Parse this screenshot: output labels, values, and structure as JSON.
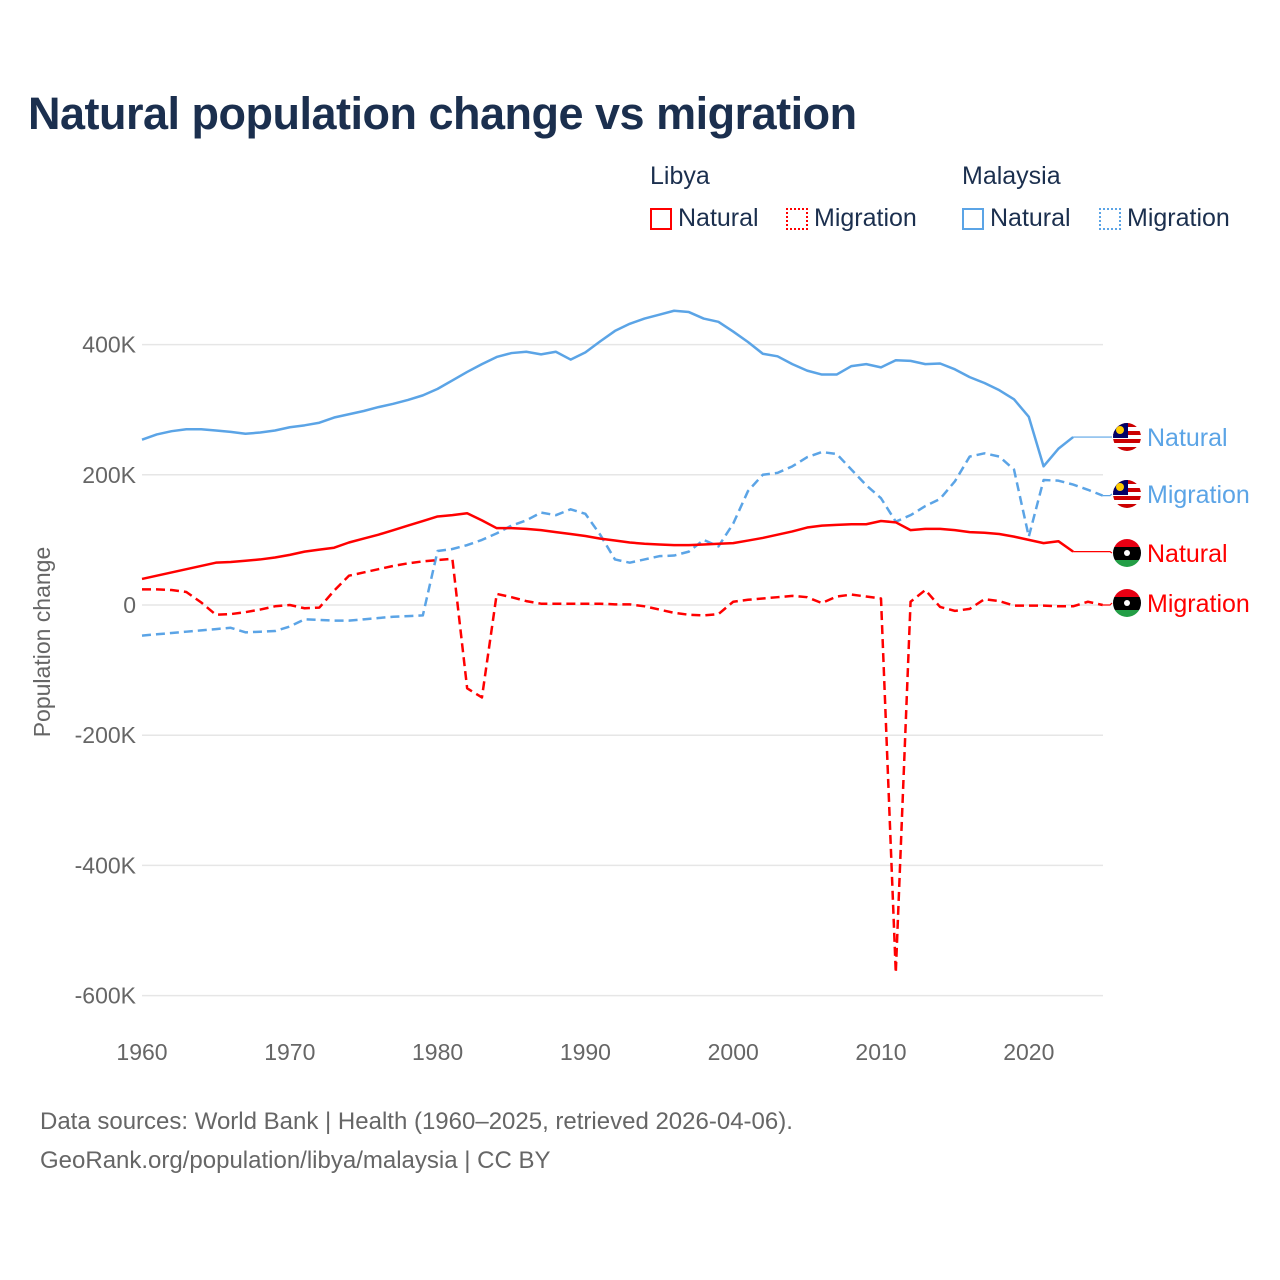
{
  "title": "Natural population change vs migration",
  "legend": {
    "groups": [
      {
        "country": "Libya",
        "items": [
          {
            "label": "Natural",
            "style": "solid",
            "color": "#ff0000"
          },
          {
            "label": "Migration",
            "style": "dotted",
            "color": "#ff0000"
          }
        ]
      },
      {
        "country": "Malaysia",
        "items": [
          {
            "label": "Natural",
            "style": "solid",
            "color": "#5ba4e6"
          },
          {
            "label": "Migration",
            "style": "dotted",
            "color": "#5ba4e6"
          }
        ]
      }
    ]
  },
  "footer": {
    "line1": "Data sources: World Bank | Health (1960–2025, retrieved 2026-04-06).",
    "line2": "GeoRank.org/population/libya/malaysia | CC BY"
  },
  "chart_data": {
    "type": "line",
    "title": "Natural population change vs migration",
    "xlabel": "",
    "ylabel": "Population change",
    "xlim": [
      1960,
      2025
    ],
    "ylim": [
      -600000,
      500000
    ],
    "xticks": [
      1960,
      1970,
      1980,
      1990,
      2000,
      2010,
      2020
    ],
    "xtick_labels": [
      "1960",
      "1970",
      "1980",
      "1990",
      "2000",
      "2010",
      "2020"
    ],
    "yticks": [
      400000,
      200000,
      0,
      -200000,
      -400000,
      -600000
    ],
    "ytick_labels": [
      "400K",
      "200K",
      "0",
      "-200K",
      "-400K",
      "-600K"
    ],
    "grid": true,
    "x_start": 1960,
    "series": [
      {
        "name": "Malaysia Natural",
        "country": "Malaysia",
        "label": "Natural",
        "color": "#5ba4e6",
        "dash": false,
        "flag": "malaysia-flag",
        "values": [
          254,
          262,
          267,
          270,
          270,
          268,
          266,
          263,
          265,
          268,
          273,
          276,
          280,
          288,
          293,
          298,
          304,
          309,
          315,
          322,
          332,
          345,
          358,
          370,
          381,
          387,
          389,
          385,
          389,
          377,
          388,
          405,
          421,
          432,
          440,
          446,
          452,
          450,
          440,
          435,
          420,
          404,
          386,
          382,
          370,
          360,
          354,
          354,
          367,
          370,
          365,
          376,
          375,
          370,
          371,
          362,
          350,
          341,
          330,
          316,
          289,
          213,
          240,
          258
        ]
      },
      {
        "name": "Malaysia Migration",
        "country": "Malaysia",
        "label": "Migration",
        "color": "#5ba4e6",
        "dash": true,
        "flag": "malaysia-flag",
        "values": [
          -47,
          -45,
          -43,
          -41,
          -39,
          -37,
          -35,
          -42,
          -41,
          -40,
          -33,
          -22,
          -23,
          -24,
          -24,
          -22,
          -20,
          -18,
          -17,
          -16,
          83,
          86,
          92,
          100,
          110,
          122,
          130,
          142,
          138,
          147,
          140,
          108,
          70,
          65,
          70,
          75,
          76,
          82,
          100,
          90,
          125,
          175,
          200,
          203,
          213,
          227,
          235,
          232,
          208,
          184,
          164,
          128,
          138,
          152,
          163,
          190,
          228,
          233,
          228,
          208,
          105,
          192,
          191,
          185,
          177,
          168
        ]
      },
      {
        "name": "Libya Natural",
        "country": "Libya",
        "label": "Natural",
        "color": "#ff0000",
        "dash": false,
        "flag": "libya-flag",
        "values": [
          40,
          45,
          50,
          55,
          60,
          65,
          66,
          68,
          70,
          73,
          77,
          82,
          85,
          88,
          96,
          102,
          108,
          115,
          122,
          129,
          136,
          138,
          141,
          130,
          118,
          118,
          117,
          115,
          112,
          109,
          106,
          102,
          99,
          96,
          94,
          93,
          92,
          92,
          93,
          94,
          95,
          99,
          103,
          108,
          113,
          119,
          122,
          123,
          124,
          124,
          129,
          127,
          115,
          117,
          117,
          115,
          112,
          111,
          109,
          105,
          100,
          95,
          98,
          82
        ]
      },
      {
        "name": "Libya Migration",
        "country": "Libya",
        "label": "Migration",
        "color": "#ff0000",
        "dash": true,
        "flag": "libya-flag",
        "values": [
          24,
          24,
          23,
          20,
          4,
          -15,
          -14,
          -11,
          -7,
          -2,
          0,
          -5,
          -4,
          22,
          45,
          50,
          55,
          60,
          64,
          67,
          69,
          71,
          -128,
          -142,
          17,
          12,
          6,
          2,
          2,
          2,
          2,
          2,
          1,
          1,
          -2,
          -7,
          -12,
          -15,
          -16,
          -14,
          5,
          8,
          10,
          12,
          14,
          12,
          3,
          13,
          16,
          13,
          10,
          -565,
          5,
          23,
          -3,
          -9,
          -6,
          9,
          6,
          -1,
          -1,
          -1,
          -2,
          -2,
          5,
          0
        ]
      }
    ],
    "value_unit": "thousands"
  }
}
